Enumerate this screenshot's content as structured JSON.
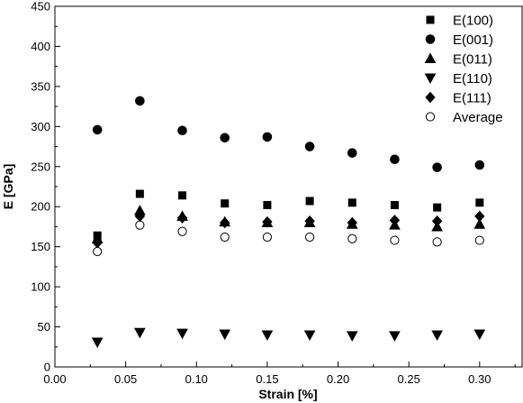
{
  "chart_data": {
    "type": "scatter",
    "title": "",
    "xlabel": "Strain [%]",
    "ylabel": "E [GPa]",
    "xlim": [
      0.0,
      0.33
    ],
    "ylim": [
      0,
      450
    ],
    "x_ticks": [
      0.0,
      0.05,
      0.1,
      0.15,
      0.2,
      0.25,
      0.3
    ],
    "x_tick_labels": [
      "0.00",
      "0.05",
      "0.10",
      "0.15",
      "0.20",
      "0.25",
      "0.30"
    ],
    "y_ticks": [
      0,
      50,
      100,
      150,
      200,
      250,
      300,
      350,
      400,
      450
    ],
    "y_tick_labels": [
      "0",
      "50",
      "100",
      "150",
      "200",
      "250",
      "300",
      "350",
      "400",
      "450"
    ],
    "grid": false,
    "legend_position": "top-right",
    "x": [
      0.03,
      0.06,
      0.09,
      0.12,
      0.15,
      0.18,
      0.21,
      0.24,
      0.27,
      0.3
    ],
    "series": [
      {
        "name": "E(100)",
        "marker": "square",
        "filled": true,
        "values": [
          164,
          216,
          214,
          204,
          202,
          207,
          205,
          202,
          199,
          205
        ]
      },
      {
        "name": "E(001)",
        "marker": "circle",
        "filled": true,
        "values": [
          296,
          332,
          295,
          286,
          287,
          275,
          267,
          259,
          249,
          252
        ]
      },
      {
        "name": "E(011)",
        "marker": "triangle-up",
        "filled": true,
        "values": [
          160,
          195,
          188,
          181,
          180,
          180,
          178,
          177,
          175,
          178
        ]
      },
      {
        "name": "E(110)",
        "marker": "triangle-down",
        "filled": true,
        "values": [
          31,
          43,
          42,
          41,
          40,
          40,
          39,
          39,
          40,
          41
        ]
      },
      {
        "name": "E(111)",
        "marker": "diamond",
        "filled": true,
        "values": [
          155,
          188,
          186,
          180,
          181,
          182,
          180,
          183,
          182,
          188
        ]
      },
      {
        "name": "Average",
        "marker": "circle",
        "filled": false,
        "values": [
          144,
          177,
          169,
          162,
          162,
          162,
          160,
          158,
          156,
          158
        ]
      }
    ],
    "colors": {
      "marker": "#000000",
      "axis": "#000000",
      "background": "#ffffff"
    }
  }
}
